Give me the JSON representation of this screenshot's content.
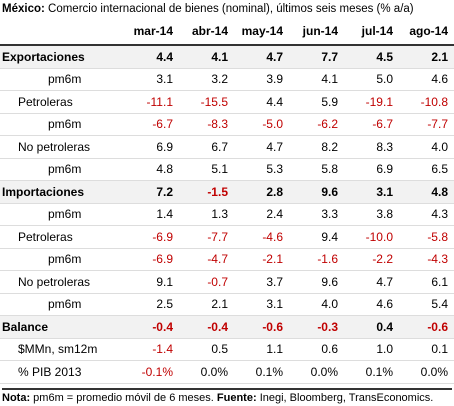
{
  "header": {
    "title_bold": "México:",
    "title": "Comercio internacional de bienes (nominal), últimos seis meses (% a/a)"
  },
  "table": {
    "columns": [
      "mar-14",
      "abr-14",
      "may-14",
      "jun-14",
      "jul-14",
      "ago-14"
    ],
    "rows": [
      {
        "label": "Exportaciones",
        "values": [
          "4.4",
          "4.1",
          "4.7",
          "7.7",
          "4.5",
          "2.1"
        ]
      },
      {
        "label": "pm6m",
        "values": [
          "3.1",
          "3.2",
          "3.9",
          "4.1",
          "5.0",
          "4.6"
        ]
      },
      {
        "label": "Petroleras",
        "values": [
          "-11.1",
          "-15.5",
          "4.4",
          "5.9",
          "-19.1",
          "-10.8"
        ]
      },
      {
        "label": "pm6m",
        "values": [
          "-6.7",
          "-8.3",
          "-5.0",
          "-6.2",
          "-6.7",
          "-7.7"
        ]
      },
      {
        "label": "No petroleras",
        "values": [
          "6.9",
          "6.7",
          "4.7",
          "8.2",
          "8.3",
          "4.0"
        ]
      },
      {
        "label": "pm6m",
        "values": [
          "4.8",
          "5.1",
          "5.3",
          "5.8",
          "6.9",
          "6.5"
        ]
      },
      {
        "label": "Importaciones",
        "values": [
          "7.2",
          "-1.5",
          "2.8",
          "9.6",
          "3.1",
          "4.8"
        ]
      },
      {
        "label": "pm6m",
        "values": [
          "1.4",
          "1.3",
          "2.4",
          "3.3",
          "3.8",
          "4.3"
        ]
      },
      {
        "label": "Petroleras",
        "values": [
          "-6.9",
          "-7.7",
          "-4.6",
          "9.4",
          "-10.0",
          "-5.8"
        ]
      },
      {
        "label": "pm6m",
        "values": [
          "-6.9",
          "-4.7",
          "-2.1",
          "-1.6",
          "-2.2",
          "-4.3"
        ]
      },
      {
        "label": "No petroleras",
        "values": [
          "9.1",
          "-0.7",
          "3.7",
          "9.6",
          "4.7",
          "6.1"
        ]
      },
      {
        "label": "pm6m",
        "values": [
          "2.5",
          "2.1",
          "3.1",
          "4.0",
          "4.6",
          "5.4"
        ]
      },
      {
        "label": "Balance",
        "values": [
          "-0.4",
          "-0.4",
          "-0.6",
          "-0.3",
          "0.4",
          "-0.6"
        ]
      },
      {
        "label": "$MMn, sm12m",
        "values": [
          "-1.4",
          "0.5",
          "1.1",
          "0.6",
          "1.0",
          "0.1"
        ]
      },
      {
        "label": "% PIB 2013",
        "values": [
          "-0.1%",
          "0.0%",
          "0.1%",
          "0.0%",
          "0.1%",
          "0.0%"
        ]
      }
    ]
  },
  "footer": {
    "note_bold": "Nota:",
    "note": "pm6m = promedio móvil de 6 meses.",
    "source_bold": "Fuente:",
    "source": "Inegi, Bloomberg, TransEconomics."
  }
}
